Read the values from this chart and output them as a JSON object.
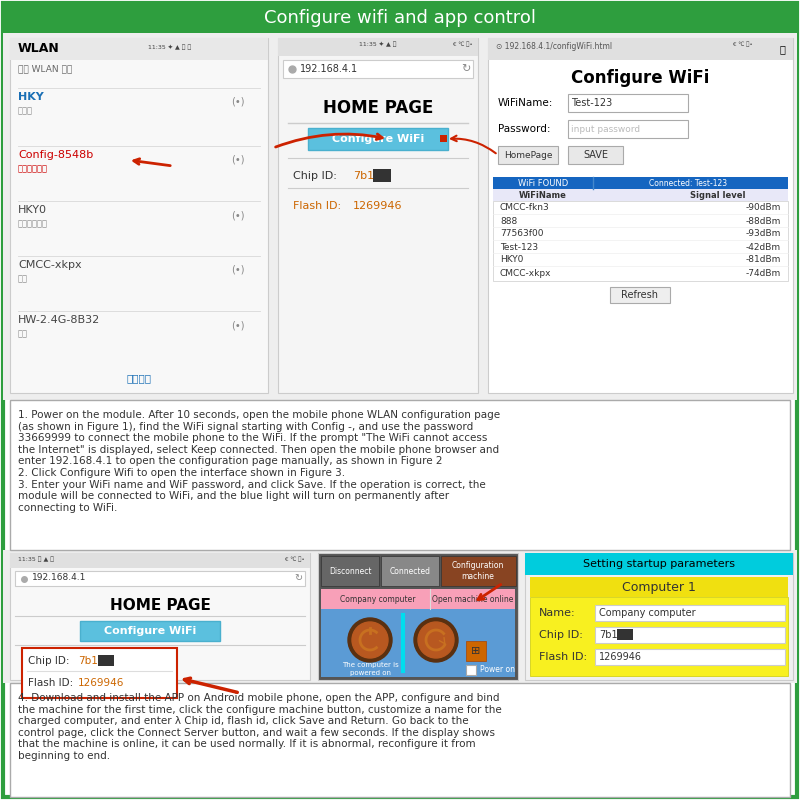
{
  "title": "Configure wifi and app control",
  "title_bg": "#2e9e3e",
  "title_color": "#ffffff",
  "border_color": "#2e9e3e",
  "bg_color": "#f0f0f0",
  "section1_text": "1. Power on the module. After 10 seconds, open the mobile phone WLAN configuration page\n(as shown in Figure 1), find the WiFi signal starting with Config -, and use the password\n33669999 to connect the mobile phone to the WiFi. If the prompt \"The WiFi cannot access\nthe Internet\" is displayed, select Keep connected. Then open the mobile phone browser and\nenter 192.168.4.1 to open the configuration page manually, as shown in Figure 2\n2. Click Configure Wifi to open the interface shown in Figure 3.\n3. Enter your WiFi name and WiF password, and click Save. If the operation is correct, the\nmodule will be connected to WiFi, and the blue light will turn on permanently after\nconnecting to WiFi.",
  "section2_text": "4. Download and install the APP on Android mobile phone, open the APP, configure and bind\nthe machine for the first time, click the configure machine button, customize a name for the\ncharged computer, and enter λ Chip id, flash id, click Save and Return. Go back to the\ncontrol page, click the Connect Server button, and wait a few seconds. If the display shows\nthat the machine is online, it can be used normally. If it is abnormal, reconfigure it from\nbeginning to end.",
  "wlan_entries": [
    {
      "name": "HKY",
      "sub": "已连接",
      "color": "#1a6fb5",
      "bold": true
    },
    {
      "name": "Config-8548b",
      "sub": "已保存，加密",
      "color": "#cc0000",
      "bold": false
    },
    {
      "name": "HKY0",
      "sub": "已保存，加密",
      "color": "#444444",
      "bold": false
    },
    {
      "name": "CMCC-xkpx",
      "sub": "加密",
      "color": "#444444",
      "bold": false
    },
    {
      "name": "HW-2.4G-8B32",
      "sub": "加密",
      "color": "#444444",
      "bold": false
    }
  ],
  "wifi_table": [
    [
      "CMCC-fkn3",
      "-90dBm"
    ],
    [
      "888",
      "-88dBm"
    ],
    [
      "77563f00",
      "-93dBm"
    ],
    [
      "Test-123",
      "-42dBm"
    ],
    [
      "HKY0",
      "-81dBm"
    ],
    [
      "CMCC-xkpx",
      "-74dBm"
    ]
  ]
}
